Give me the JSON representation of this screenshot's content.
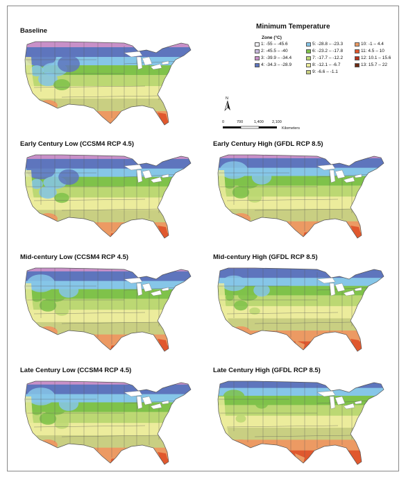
{
  "figure": {
    "legend_title": "Minimum Temperature",
    "legend_header": "Zone (°C)",
    "zones": [
      {
        "label": "1: -55 – -45.6",
        "color": "#f4f3f8"
      },
      {
        "label": "2: -45.5 – -40",
        "color": "#c8b9dd"
      },
      {
        "label": "3: -39.9 – -34.4",
        "color": "#c890c8"
      },
      {
        "label": "4: -34.3 – -28.9",
        "color": "#5e75bd"
      },
      {
        "label": "5: -28.8 – -23.3",
        "color": "#86c6e8"
      },
      {
        "label": "6: -23.2 – -17.8",
        "color": "#7fc24a"
      },
      {
        "label": "7: -17.7 – -12.2",
        "color": "#bcd873"
      },
      {
        "label": "8: -12.1 – -6.7",
        "color": "#ecec9c"
      },
      {
        "label": "9: -6.6 – -1.1",
        "color": "#c9cf82"
      },
      {
        "label": "10: -1 – 4.4",
        "color": "#ec9a63"
      },
      {
        "label": "11: 4.5 – 10",
        "color": "#e0582e"
      },
      {
        "label": "12: 10.1 – 15.6",
        "color": "#b5321c"
      },
      {
        "label": "13: 15.7 – 22",
        "color": "#6d2a12"
      }
    ],
    "north_label": "N",
    "scale_ticks": [
      "0",
      "700",
      "1,400",
      "2,100"
    ],
    "scale_unit": "Kilometers"
  },
  "panels": [
    {
      "title": "Baseline",
      "band_shift": 0
    },
    {
      "title": "Early Century Low (CCSM4 RCP 4.5)",
      "band_shift": 2
    },
    {
      "title": "Early Century High (GFDL RCP 8.5)",
      "band_shift": 3
    },
    {
      "title": "Mid-century Low (CCSM4 RCP 4.5)",
      "band_shift": 3
    },
    {
      "title": "Mid-century High (GFDL RCP 8.5)",
      "band_shift": 7
    },
    {
      "title": "Late Century Low (CCSM4 RCP 4.5)",
      "band_shift": 3
    },
    {
      "title": "Late Century High (GFDL RCP 8.5)",
      "band_shift": 11
    }
  ]
}
